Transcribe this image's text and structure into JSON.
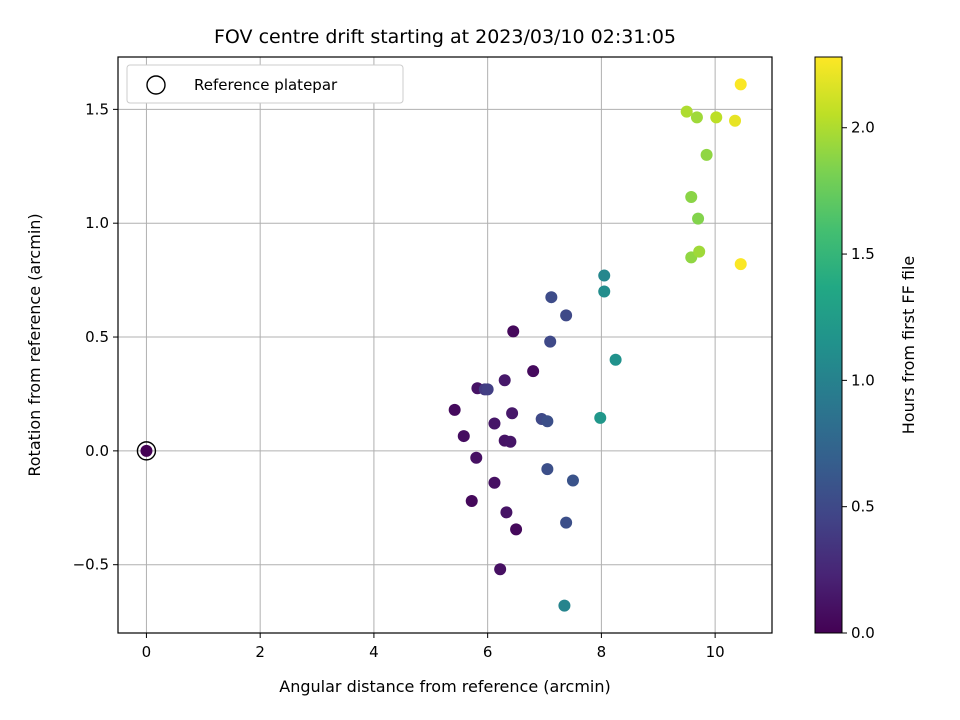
{
  "chart_data": {
    "type": "scatter",
    "title": "FOV centre drift starting at 2023/03/10 02:31:05",
    "xlabel": "Angular distance from reference (arcmin)",
    "ylabel": "Rotation from reference (arcmin)",
    "xlim": [
      -0.5,
      11.0
    ],
    "ylim": [
      -0.8,
      1.73
    ],
    "xticks": [
      0,
      2,
      4,
      6,
      8,
      10
    ],
    "xtick_labels": [
      "0",
      "2",
      "4",
      "6",
      "8",
      "10"
    ],
    "yticks": [
      -0.5,
      0.0,
      0.5,
      1.0,
      1.5
    ],
    "ytick_labels": [
      "−0.5",
      "0.0",
      "0.5",
      "1.0",
      "1.5"
    ],
    "grid": true,
    "legend": {
      "placement": "top-left",
      "entries": [
        {
          "label": "Reference platepar",
          "marker": "open-circle"
        }
      ]
    },
    "reference_point": {
      "x": 0.0,
      "y": 0.0
    },
    "colorbar": {
      "label": "Hours from first FF file",
      "colormap": "viridis",
      "range": [
        0.0,
        2.28
      ],
      "ticks": [
        0.0,
        0.5,
        1.0,
        1.5,
        2.0
      ],
      "tick_labels": [
        "0.0",
        "0.5",
        "1.0",
        "1.5",
        "2.0"
      ]
    },
    "points": [
      {
        "x": 0.0,
        "y": 0.0,
        "c": 0.0
      },
      {
        "x": 5.42,
        "y": 0.18,
        "c": 0.06
      },
      {
        "x": 5.58,
        "y": 0.065,
        "c": 0.08
      },
      {
        "x": 5.72,
        "y": -0.22,
        "c": 0.05
      },
      {
        "x": 5.8,
        "y": -0.03,
        "c": 0.1
      },
      {
        "x": 5.82,
        "y": 0.275,
        "c": 0.12
      },
      {
        "x": 6.12,
        "y": 0.12,
        "c": 0.14
      },
      {
        "x": 6.12,
        "y": -0.14,
        "c": 0.1
      },
      {
        "x": 6.22,
        "y": -0.52,
        "c": 0.1
      },
      {
        "x": 6.3,
        "y": 0.31,
        "c": 0.15
      },
      {
        "x": 6.3,
        "y": 0.045,
        "c": 0.12
      },
      {
        "x": 6.33,
        "y": -0.27,
        "c": 0.12
      },
      {
        "x": 6.4,
        "y": 0.04,
        "c": 0.13
      },
      {
        "x": 6.43,
        "y": 0.165,
        "c": 0.15
      },
      {
        "x": 6.45,
        "y": 0.525,
        "c": 0.05
      },
      {
        "x": 6.5,
        "y": -0.345,
        "c": 0.05
      },
      {
        "x": 6.8,
        "y": 0.35,
        "c": 0.06
      },
      {
        "x": 5.95,
        "y": 0.27,
        "c": 0.38
      },
      {
        "x": 6.0,
        "y": 0.27,
        "c": 0.42
      },
      {
        "x": 6.95,
        "y": 0.14,
        "c": 0.5
      },
      {
        "x": 7.05,
        "y": 0.13,
        "c": 0.55
      },
      {
        "x": 7.05,
        "y": -0.08,
        "c": 0.55
      },
      {
        "x": 7.1,
        "y": 0.48,
        "c": 0.5
      },
      {
        "x": 7.12,
        "y": 0.675,
        "c": 0.52
      },
      {
        "x": 7.35,
        "y": -0.68,
        "c": 1.02
      },
      {
        "x": 7.38,
        "y": 0.595,
        "c": 0.5
      },
      {
        "x": 7.38,
        "y": -0.315,
        "c": 0.55
      },
      {
        "x": 7.5,
        "y": -0.13,
        "c": 0.58
      },
      {
        "x": 7.98,
        "y": 0.145,
        "c": 1.2
      },
      {
        "x": 8.05,
        "y": 0.77,
        "c": 1.05
      },
      {
        "x": 8.05,
        "y": 0.7,
        "c": 1.1
      },
      {
        "x": 8.25,
        "y": 0.4,
        "c": 1.15
      },
      {
        "x": 9.5,
        "y": 1.49,
        "c": 2.0
      },
      {
        "x": 9.58,
        "y": 1.115,
        "c": 1.88
      },
      {
        "x": 9.58,
        "y": 0.85,
        "c": 1.9
      },
      {
        "x": 9.68,
        "y": 1.465,
        "c": 1.95
      },
      {
        "x": 9.7,
        "y": 1.02,
        "c": 1.85
      },
      {
        "x": 9.72,
        "y": 0.875,
        "c": 1.95
      },
      {
        "x": 9.85,
        "y": 1.3,
        "c": 1.9
      },
      {
        "x": 10.02,
        "y": 1.465,
        "c": 2.05
      },
      {
        "x": 10.35,
        "y": 1.45,
        "c": 2.2
      },
      {
        "x": 10.45,
        "y": 1.61,
        "c": 2.27
      },
      {
        "x": 10.45,
        "y": 0.82,
        "c": 2.27
      }
    ]
  }
}
